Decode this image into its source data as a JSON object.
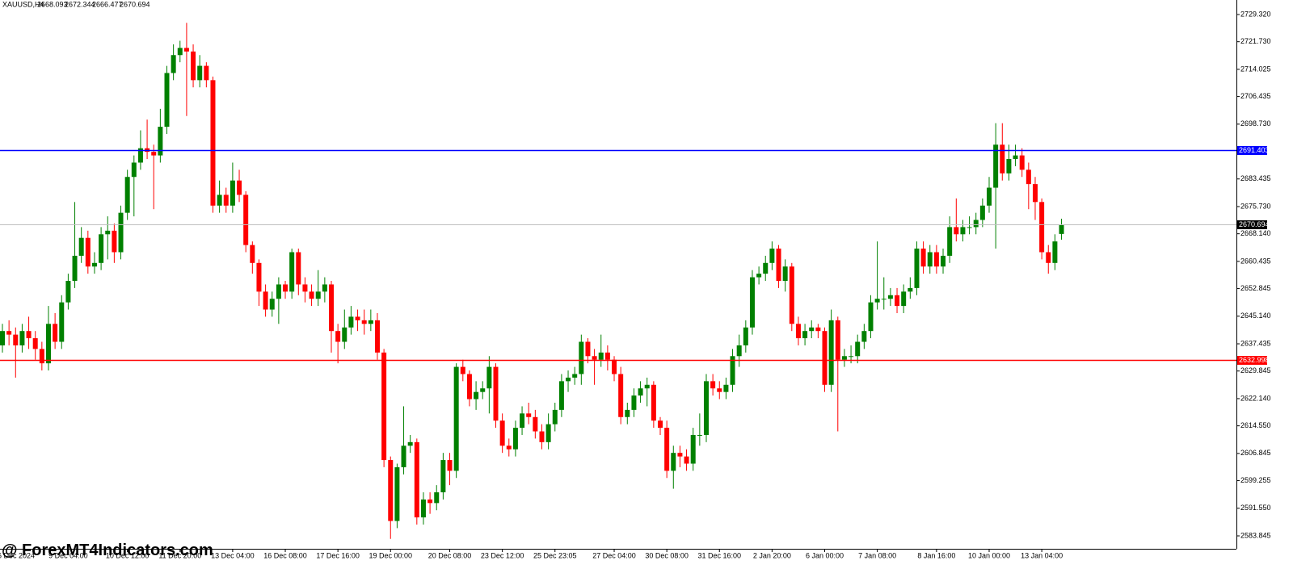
{
  "chart_data": {
    "type": "candlestick",
    "symbol": "XAUUSD,H4",
    "header_ohlc": [
      2668.093,
      2672.344,
      2666.477,
      2670.694
    ],
    "watermark": "@ ForexMT4Indicators.com",
    "colors": {
      "up": "#008000",
      "down": "#ff0000"
    },
    "ylim": [
      2580.24,
      2733.37
    ],
    "yticks": [
      {
        "value": 2729.32,
        "label": "2729.320"
      },
      {
        "value": 2721.73,
        "label": "2721.730"
      },
      2714.025,
      2706.435,
      {
        "value": 2698.73,
        "label": "2698.730"
      },
      2683.435,
      {
        "value": 2675.73,
        "label": "2675.730"
      },
      {
        "value": 2668.14,
        "label": "2668.140"
      },
      2660.435,
      2652.845,
      {
        "value": 2645.14,
        "label": "2645.140"
      },
      2637.435,
      2629.845,
      {
        "value": 2622.14,
        "label": "2622.140"
      },
      {
        "value": 2614.55,
        "label": "2614.550"
      },
      2606.845,
      2599.255,
      {
        "value": 2591.55,
        "label": "2591.550"
      },
      2583.845
    ],
    "lines": [
      {
        "value": 2691.403,
        "color": "#0000ff"
      },
      {
        "value": 2632.998,
        "color": "#ff0000"
      },
      {
        "value": 2670.694,
        "color": "#c0c0c0"
      }
    ],
    "categories": [
      null,
      null,
      "6 Dec 2024",
      null,
      null,
      null,
      null,
      null,
      null,
      null,
      "9 Dec 04:00",
      null,
      null,
      null,
      null,
      null,
      null,
      null,
      null,
      "10 Dec 12:00",
      null,
      null,
      null,
      null,
      null,
      null,
      null,
      "11 Dec 20:00",
      null,
      null,
      null,
      null,
      null,
      null,
      null,
      "13 Dec 04:00",
      null,
      null,
      null,
      null,
      null,
      null,
      null,
      "16 Dec 08:00",
      null,
      null,
      null,
      null,
      null,
      null,
      null,
      "17 Dec 16:00",
      null,
      null,
      null,
      null,
      null,
      null,
      null,
      "19 Dec 00:00",
      null,
      null,
      null,
      null,
      null,
      null,
      null,
      null,
      "20 Dec 08:00",
      null,
      null,
      null,
      null,
      null,
      null,
      null,
      "23 Dec 12:00",
      null,
      null,
      null,
      null,
      null,
      null,
      null,
      "25 Dec 23:05",
      null,
      null,
      null,
      null,
      null,
      null,
      null,
      null,
      "27 Dec 04:00",
      null,
      null,
      null,
      null,
      null,
      null,
      null,
      "30 Dec 08:00",
      null,
      null,
      null,
      null,
      null,
      null,
      null,
      "31 Dec 16:00",
      null,
      null,
      null,
      null,
      null,
      null,
      null,
      "2 Jan 20:00",
      null,
      null,
      null,
      null,
      null,
      null,
      null,
      "6 Jan 00:00",
      null,
      null,
      null,
      null,
      null,
      null,
      null,
      "7 Jan 08:00",
      null,
      null,
      null,
      null,
      null,
      null,
      null,
      null,
      "8 Jan 16:00",
      null,
      null,
      null,
      null,
      null,
      null,
      null,
      "10 Jan 00:00",
      null,
      null,
      null,
      null,
      null,
      null,
      null,
      "13 Jan 04:00",
      null,
      null,
      null
    ],
    "open": [
      2637,
      2641,
      2640,
      2637,
      2641,
      2639,
      2636,
      2632,
      2643,
      2638,
      2649,
      2655,
      2662,
      2667,
      2659,
      2660,
      2668,
      2669,
      2663,
      2674,
      2684,
      2688,
      2692,
      2691,
      2690,
      2698,
      2713,
      2718,
      2720,
      2719,
      2711,
      2715,
      2711,
      2676,
      2679,
      2676,
      2683,
      2679,
      2665,
      2660,
      2652,
      2647,
      2650,
      2654,
      2652,
      2663,
      2654,
      2652,
      2650,
      2652,
      2654,
      2641,
      2638,
      2642,
      2645,
      2644,
      2643,
      2644,
      2635,
      2605,
      2588,
      2603,
      2609,
      2610,
      2589,
      2594,
      2593,
      2596,
      2605,
      2602,
      2631,
      2629,
      2622,
      2624,
      2625,
      2631,
      2616,
      2609,
      2608,
      2614,
      2618,
      2617,
      2613,
      2610,
      2615,
      2619,
      2627,
      2628,
      2629,
      2638,
      2634,
      2633,
      2635,
      2633,
      2629,
      2617,
      2619,
      2623,
      2625,
      2626,
      2616,
      2614,
      2602,
      2607,
      2606,
      2604,
      2612,
      2612,
      2627,
      2625,
      2624,
      2626,
      2634,
      2637,
      2642,
      2656,
      2657,
      2660,
      2664,
      2655,
      2659,
      2643,
      2639,
      2641,
      2642,
      2641,
      2626,
      2644,
      2633,
      2634,
      2634,
      2638,
      2641,
      2649,
      2650,
      2650,
      2651,
      2648,
      2652,
      2653,
      2664,
      2659,
      2663,
      2659,
      2662,
      2670,
      2668,
      2670,
      2670,
      2672,
      2676,
      2681,
      2693,
      2685,
      2689,
      2690,
      2686,
      2682,
      2677,
      2663,
      2660,
      2668.093
    ],
    "high": [
      2643,
      2644,
      2642,
      2643,
      2645,
      2641,
      2638,
      2648,
      2646,
      2651,
      2657,
      2677,
      2670,
      2669,
      2663,
      2670,
      2673,
      2671,
      2676,
      2686,
      2690,
      2697,
      2700,
      2693,
      2703,
      2715,
      2721,
      2722,
      2727,
      2721,
      2718,
      2716,
      2712,
      2683,
      2681,
      2688,
      2686,
      2680,
      2666,
      2661,
      2654,
      2652,
      2656,
      2655,
      2664,
      2664,
      2656,
      2654,
      2658,
      2656,
      2655,
      2643,
      2647,
      2648,
      2647,
      2647,
      2647,
      2646,
      2636,
      2606,
      2604,
      2620,
      2612,
      2611,
      2596,
      2596,
      2598,
      2607,
      2607,
      2632,
      2633,
      2630,
      2627,
      2627,
      2634,
      2632,
      2618,
      2611,
      2616,
      2620,
      2621,
      2619,
      2615,
      2618,
      2621,
      2629,
      2630,
      2631,
      2640,
      2639,
      2636,
      2640,
      2637,
      2634,
      2631,
      2621,
      2625,
      2627,
      2628,
      2627,
      2617,
      2616,
      2609,
      2609,
      2608,
      2614,
      2618,
      2629,
      2629,
      2627,
      2628,
      2636,
      2640,
      2644,
      2658,
      2659,
      2662,
      2666,
      2665,
      2661,
      2660,
      2645,
      2643,
      2644,
      2643,
      2642,
      2647,
      2645,
      2636,
      2637,
      2640,
      2643,
      2651,
      2666,
      2656,
      2653,
      2653,
      2654,
      2656,
      2666,
      2666,
      2665,
      2665,
      2664,
      2673,
      2678,
      2672,
      2673,
      2674,
      2678,
      2684,
      2699,
      2699,
      2693,
      2693,
      2692,
      2688,
      2684,
      2678,
      2665,
      2668,
      2672.344
    ],
    "low": [
      2635,
      2637,
      2628,
      2635,
      2636,
      2633,
      2630,
      2630,
      2636,
      2636,
      2647,
      2653,
      2660,
      2657,
      2657,
      2658,
      2661,
      2660,
      2661,
      2672,
      2673,
      2686,
      2689,
      2675,
      2688,
      2696,
      2711,
      2716,
      2701,
      2709,
      2709,
      2709,
      2674,
      2674,
      2674,
      2674,
      2677,
      2663,
      2657,
      2648,
      2645,
      2645,
      2643,
      2650,
      2650,
      2651,
      2649,
      2648,
      2648,
      2649,
      2635,
      2632,
      2636,
      2640,
      2641,
      2640,
      2641,
      2633,
      2603,
      2583,
      2586,
      2601,
      2607,
      2587,
      2587,
      2590,
      2591,
      2594,
      2598,
      2600,
      2627,
      2620,
      2619,
      2622,
      2618,
      2614,
      2607,
      2606,
      2606,
      2612,
      2615,
      2611,
      2608,
      2608,
      2613,
      2617,
      2624,
      2626,
      2626,
      2632,
      2626,
      2631,
      2630,
      2627,
      2615,
      2615,
      2617,
      2621,
      2620,
      2614,
      2612,
      2600,
      2597,
      2603,
      2602,
      2602,
      2609,
      2610,
      2623,
      2622,
      2622,
      2624,
      2631,
      2635,
      2640,
      2654,
      2655,
      2658,
      2653,
      2652,
      2641,
      2637,
      2637,
      2639,
      2639,
      2624,
      2624,
      2613,
      2631,
      2632,
      2632,
      2636,
      2639,
      2647,
      2647,
      2648,
      2646,
      2646,
      2650,
      2651,
      2657,
      2657,
      2657,
      2657,
      2660,
      2666,
      2666,
      2668,
      2668,
      2670,
      2674,
      2664,
      2683,
      2683,
      2687,
      2684,
      2675,
      2672,
      2661,
      2657,
      2658,
      2666.477
    ],
    "close": [
      2641,
      2640,
      2637,
      2641,
      2639,
      2636,
      2632,
      2643,
      2638,
      2649,
      2655,
      2662,
      2667,
      2659,
      2660,
      2668,
      2669,
      2663,
      2674,
      2684,
      2688,
      2692,
      2691,
      2690,
      2698,
      2713,
      2718,
      2720,
      2719,
      2711,
      2715,
      2711,
      2676,
      2679,
      2676,
      2683,
      2679,
      2665,
      2660,
      2652,
      2647,
      2650,
      2654,
      2652,
      2663,
      2654,
      2652,
      2650,
      2652,
      2654,
      2641,
      2638,
      2642,
      2645,
      2644,
      2643,
      2644,
      2635,
      2605,
      2588,
      2603,
      2609,
      2610,
      2589,
      2594,
      2593,
      2596,
      2605,
      2602,
      2631,
      2629,
      2622,
      2624,
      2625,
      2631,
      2616,
      2609,
      2608,
      2614,
      2618,
      2617,
      2613,
      2610,
      2615,
      2619,
      2627,
      2628,
      2629,
      2638,
      2634,
      2633,
      2635,
      2633,
      2629,
      2617,
      2619,
      2623,
      2625,
      2626,
      2616,
      2614,
      2602,
      2607,
      2606,
      2604,
      2612,
      2612,
      2627,
      2625,
      2624,
      2626,
      2634,
      2637,
      2642,
      2656,
      2657,
      2660,
      2664,
      2655,
      2659,
      2643,
      2639,
      2641,
      2642,
      2641,
      2626,
      2644,
      2633,
      2634,
      2634,
      2638,
      2641,
      2649,
      2650,
      2650,
      2651,
      2648,
      2652,
      2653,
      2664,
      2659,
      2663,
      2659,
      2662,
      2670,
      2668,
      2670,
      2670,
      2672,
      2676,
      2681,
      2693,
      2685,
      2689,
      2690,
      2686,
      2682,
      2677,
      2663,
      2660,
      2666,
      2670.694
    ]
  }
}
